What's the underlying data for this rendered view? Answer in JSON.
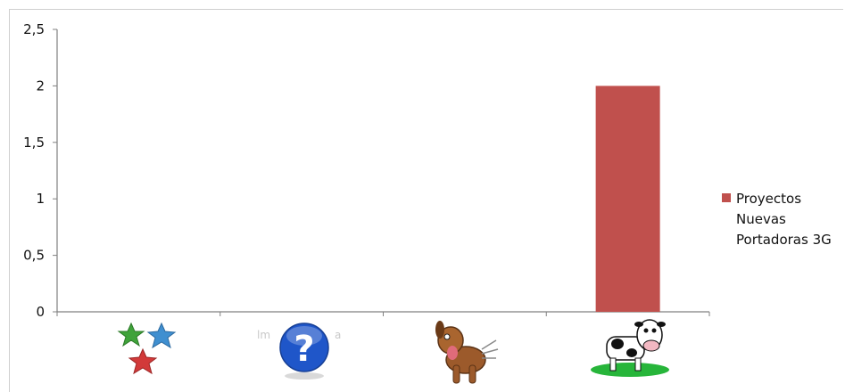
{
  "chart_data": {
    "type": "bar",
    "categories": [
      "stars",
      "question",
      "dog",
      "cow"
    ],
    "category_icons": [
      "stars-icon",
      "question-mark-icon",
      "dog-icon",
      "cow-icon"
    ],
    "series": [
      {
        "name": "Proyectos Nuevas Portadoras 3G",
        "values": [
          0,
          0,
          0,
          2
        ],
        "color": "#c0504d"
      }
    ],
    "yticks": [
      "0",
      "0,5",
      "1",
      "1,5",
      "2",
      "2,5"
    ],
    "ylim": [
      0,
      2.5
    ],
    "legend": {
      "position": "right",
      "lines": [
        "Proyectos",
        "Nuevas",
        "Portadoras 3G"
      ]
    },
    "grid": false
  }
}
